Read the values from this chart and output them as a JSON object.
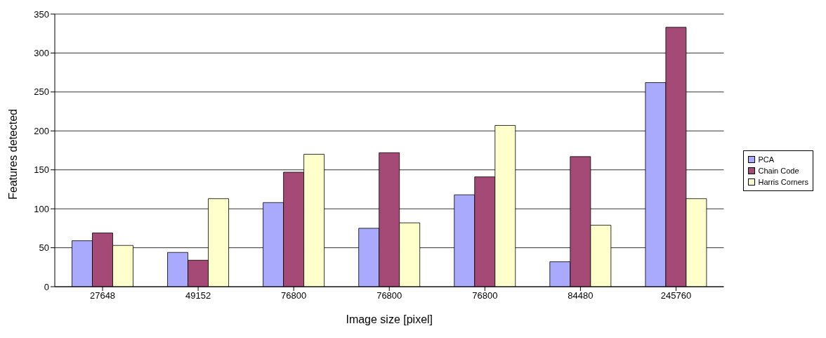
{
  "chart_data": {
    "type": "bar",
    "xlabel": "Image size [pixel]",
    "ylabel": "Features detected",
    "categories": [
      "27648",
      "49152",
      "76800",
      "76800",
      "76800",
      "84480",
      "245760"
    ],
    "series": [
      {
        "name": "PCA",
        "color": "#a9a9fd",
        "values": [
          59,
          44,
          108,
          75,
          118,
          32,
          262
        ]
      },
      {
        "name": "Chain Code",
        "color": "#a54a76",
        "values": [
          69,
          34,
          147,
          172,
          141,
          167,
          333
        ]
      },
      {
        "name": "Harris Corners",
        "color": "#ffffcc",
        "values": [
          53,
          113,
          170,
          82,
          207,
          79,
          113
        ]
      }
    ],
    "ylim": [
      0,
      350
    ],
    "yticks": [
      0,
      50,
      100,
      150,
      200,
      250,
      300,
      350
    ],
    "grid": "y",
    "legend": "right"
  }
}
